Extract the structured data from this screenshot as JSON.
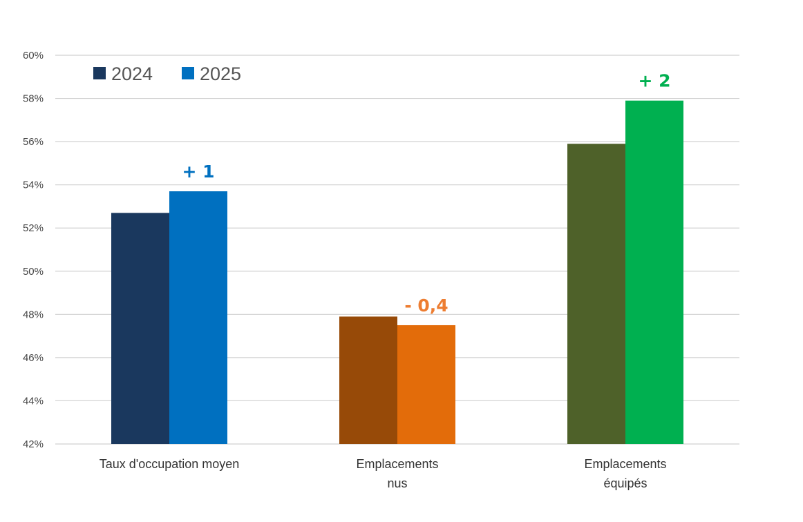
{
  "chart_data": {
    "type": "bar",
    "categories": [
      [
        "Taux d'occupation moyen"
      ],
      [
        "Emplacements",
        "nus"
      ],
      [
        "Emplacements",
        "équipés"
      ]
    ],
    "series": [
      {
        "name": "2024",
        "values": [
          52.7,
          47.9,
          55.9
        ],
        "colors": [
          "#1a385e",
          "#974a08",
          "#4e6129"
        ]
      },
      {
        "name": "2025",
        "values": [
          53.7,
          47.5,
          57.9
        ],
        "colors": [
          "#0070c0",
          "#e36c0a",
          "#00b050"
        ]
      }
    ],
    "legend": [
      {
        "label": "2024",
        "color": "#1a385e"
      },
      {
        "label": "2025",
        "color": "#0070c0"
      }
    ],
    "annotations": [
      {
        "category_index": 0,
        "text": "+ 1",
        "color": "#0070c0"
      },
      {
        "category_index": 1,
        "text": "- 0,4",
        "color": "#ed7d31"
      },
      {
        "category_index": 2,
        "text": "+ 2",
        "color": "#00b050"
      }
    ],
    "ylim": [
      42,
      60
    ],
    "yticks": [
      "42%",
      "44%",
      "46%",
      "48%",
      "50%",
      "52%",
      "54%",
      "56%",
      "58%",
      "60%"
    ],
    "ytick_values": [
      42,
      44,
      46,
      48,
      50,
      52,
      54,
      56,
      58,
      60
    ],
    "grid": true,
    "legend_position": "top-left",
    "title": "",
    "xlabel": "",
    "ylabel": ""
  }
}
